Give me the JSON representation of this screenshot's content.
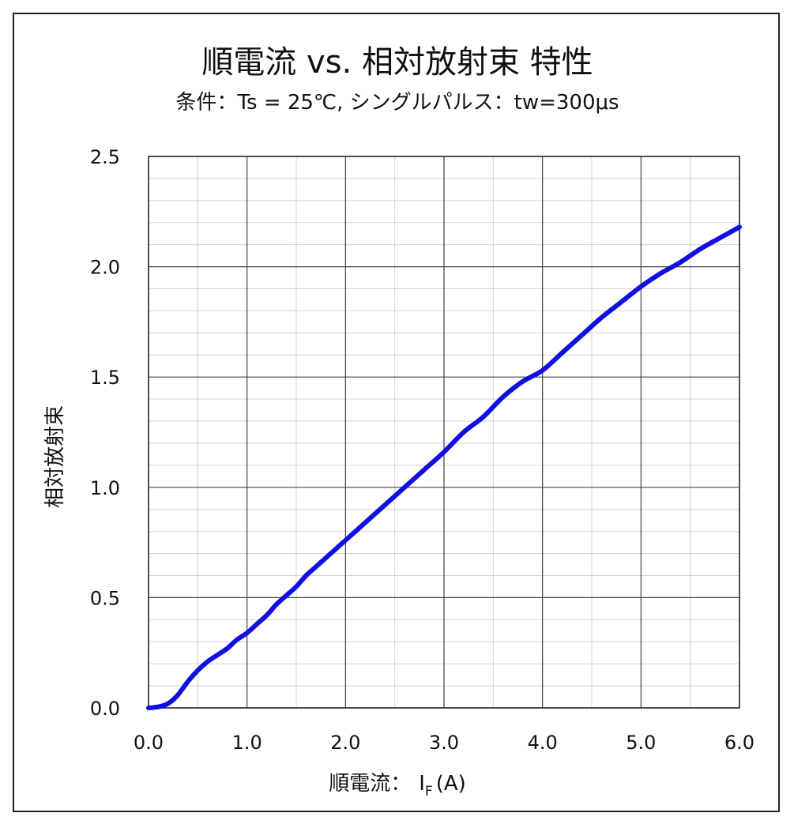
{
  "chart_data": {
    "type": "line",
    "title": "順電流 vs. 相対放射束 特性",
    "subtitle": "条件：Ts = 25℃, シングルパルス：tw=300μs",
    "xlabel_main": "順電流：",
    "xlabel_symbol": "I",
    "xlabel_subscript": "F",
    "xlabel_unit": "(A)",
    "ylabel": "相対放射束",
    "xlim": [
      0,
      6
    ],
    "ylim": [
      0,
      2.5
    ],
    "x_ticks": [
      "0.0",
      "1.0",
      "2.0",
      "3.0",
      "4.0",
      "5.0",
      "6.0"
    ],
    "y_ticks": [
      "0.0",
      "0.5",
      "1.0",
      "1.5",
      "2.0",
      "2.5"
    ],
    "x_major_step": 1.0,
    "x_minor_step": 0.5,
    "y_major_step": 0.5,
    "y_minor_step": 0.1,
    "grid": true,
    "series": [
      {
        "color": "#1010e0",
        "x": [
          0,
          0.1,
          0.2,
          0.3,
          0.4,
          0.5,
          0.6,
          0.7,
          0.8,
          0.9,
          1.0,
          1.1,
          1.2,
          1.3,
          1.4,
          1.5,
          1.6,
          1.7,
          1.8,
          1.9,
          2.0,
          2.2,
          2.4,
          2.6,
          2.8,
          3.0,
          3.2,
          3.4,
          3.6,
          3.8,
          4.0,
          4.2,
          4.4,
          4.6,
          4.8,
          5.0,
          5.2,
          5.4,
          5.6,
          5.8,
          6.0
        ],
        "y": [
          0,
          0.005,
          0.02,
          0.06,
          0.12,
          0.17,
          0.21,
          0.24,
          0.27,
          0.31,
          0.34,
          0.38,
          0.42,
          0.47,
          0.51,
          0.55,
          0.6,
          0.64,
          0.68,
          0.72,
          0.76,
          0.84,
          0.92,
          1.0,
          1.08,
          1.16,
          1.25,
          1.32,
          1.41,
          1.48,
          1.53,
          1.61,
          1.69,
          1.77,
          1.84,
          1.91,
          1.97,
          2.02,
          2.08,
          2.13,
          2.18
        ]
      }
    ]
  }
}
